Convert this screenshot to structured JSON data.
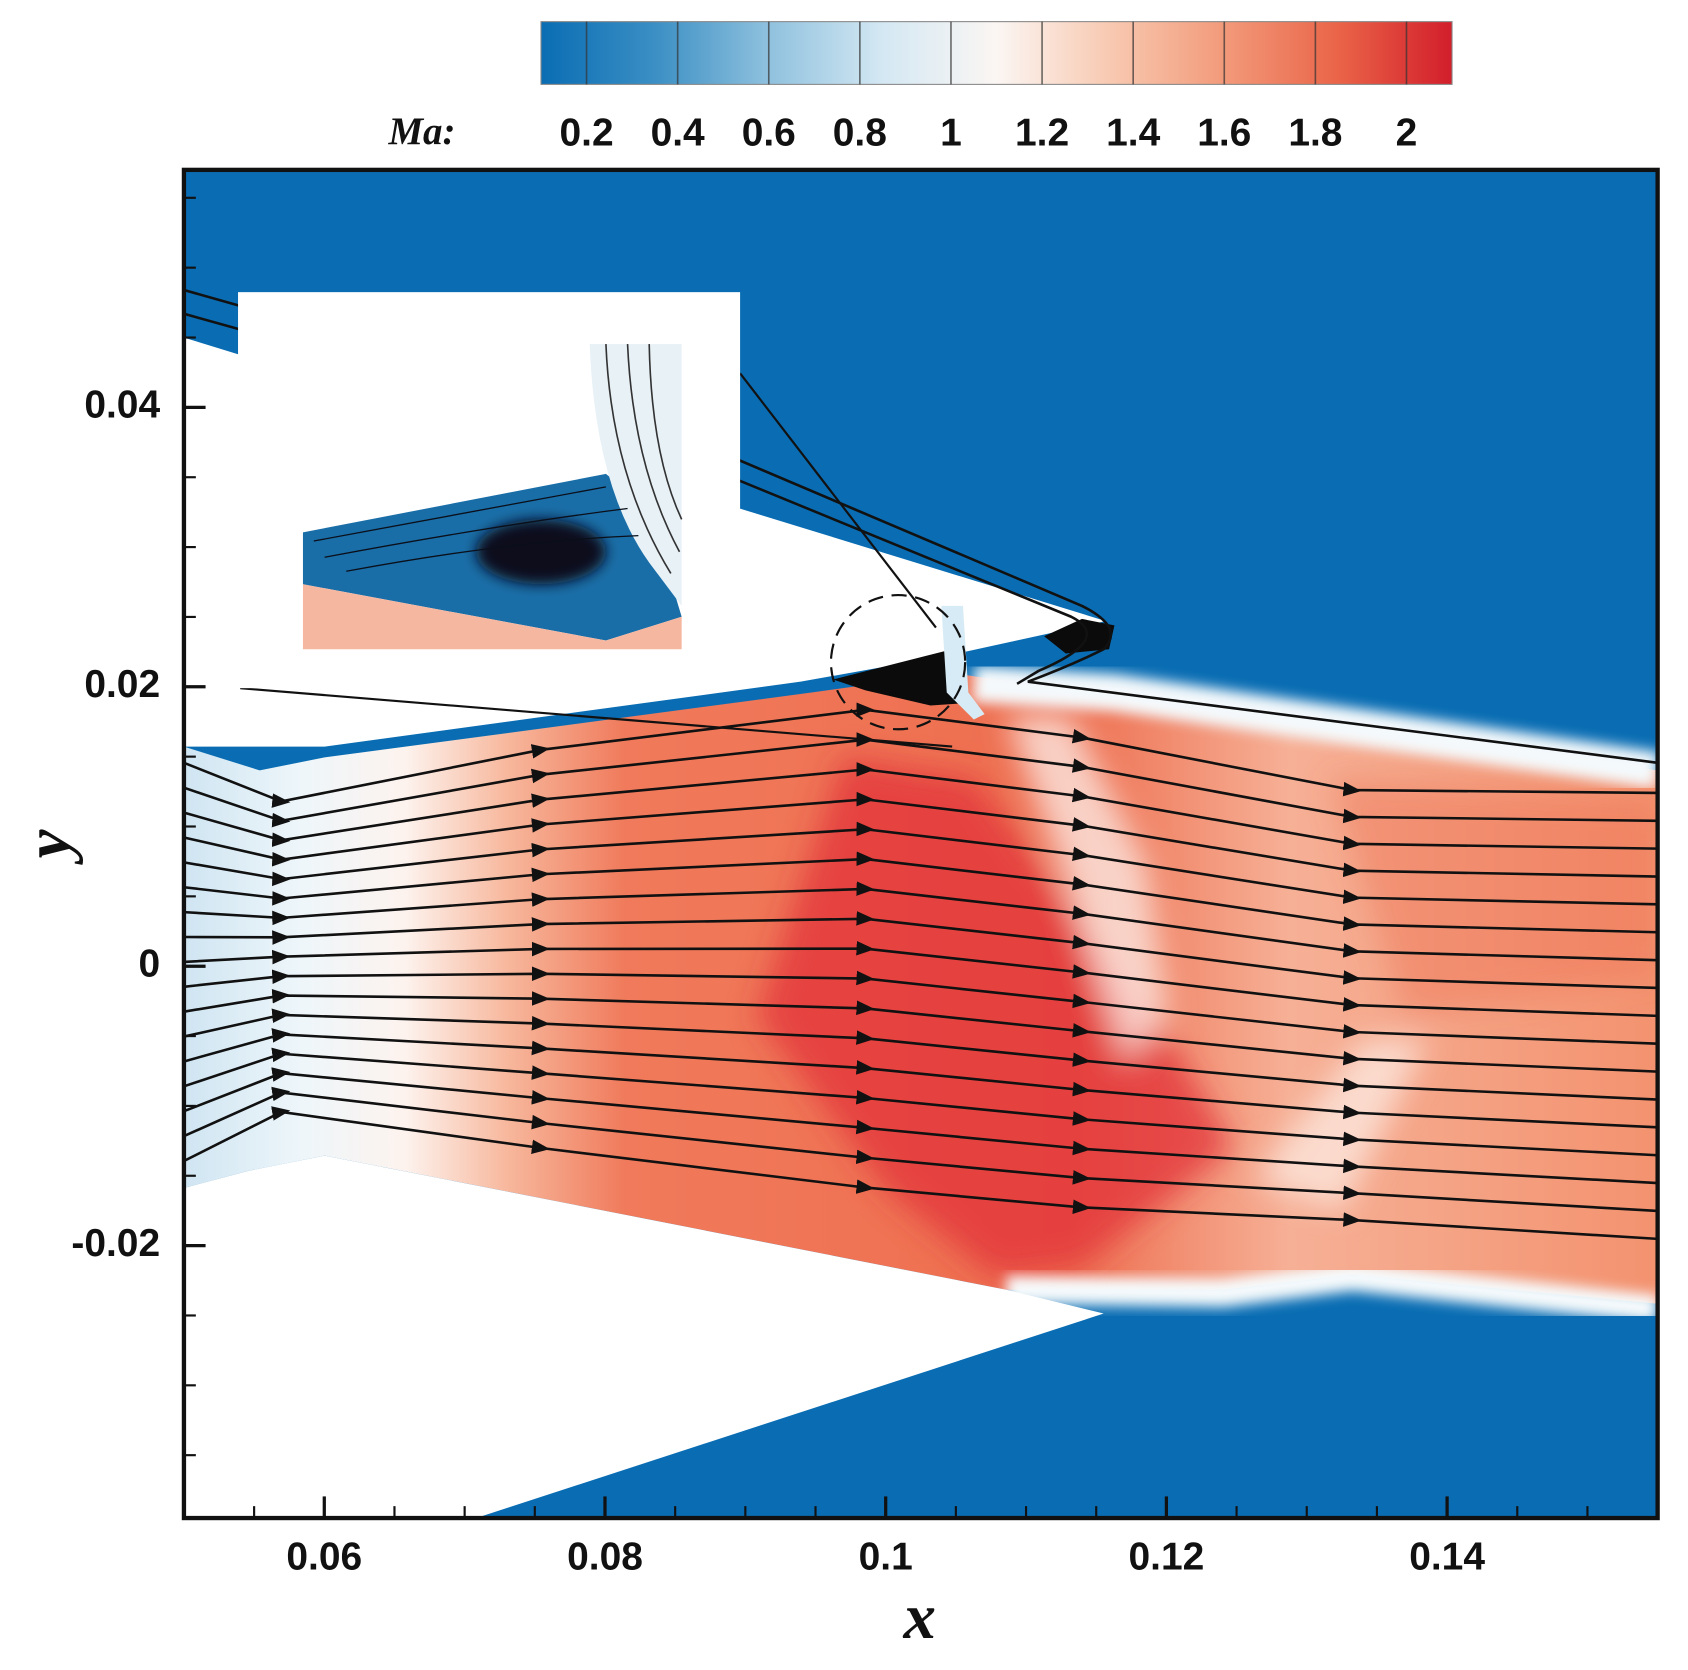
{
  "chart_data": {
    "type": "contour",
    "xlabel": "x",
    "ylabel": "y",
    "xlim": [
      0.05,
      0.155
    ],
    "ylim": [
      -0.0395,
      0.057
    ],
    "xticks": [
      0.06,
      0.08,
      0.1,
      0.12,
      0.14
    ],
    "yticks": [
      -0.02,
      0,
      0.02,
      0.04
    ],
    "xminorticks": [
      0.055,
      0.065,
      0.07,
      0.075,
      0.085,
      0.09,
      0.095,
      0.105,
      0.11,
      0.115,
      0.125,
      0.13,
      0.135,
      0.145,
      0.15
    ],
    "yminorticks": [
      -0.035,
      -0.03,
      -0.025,
      -0.015,
      -0.01,
      -0.005,
      0.005,
      0.01,
      0.015,
      0.025,
      0.03,
      0.035,
      0.045,
      0.05,
      0.055
    ],
    "colorbar": {
      "label": "Ma:",
      "lim": [
        0.1,
        2.1
      ],
      "ticks": [
        0.2,
        0.4,
        0.6,
        0.8,
        1,
        1.2,
        1.4,
        1.6,
        1.8,
        2
      ],
      "colors": [
        "#0a6db3",
        "#3b8fc4",
        "#8fc1de",
        "#d4e8f3",
        "#fbf6f3",
        "#f8c9b1",
        "#f29a7a",
        "#ea6448",
        "#d21e2b"
      ]
    }
  }
}
